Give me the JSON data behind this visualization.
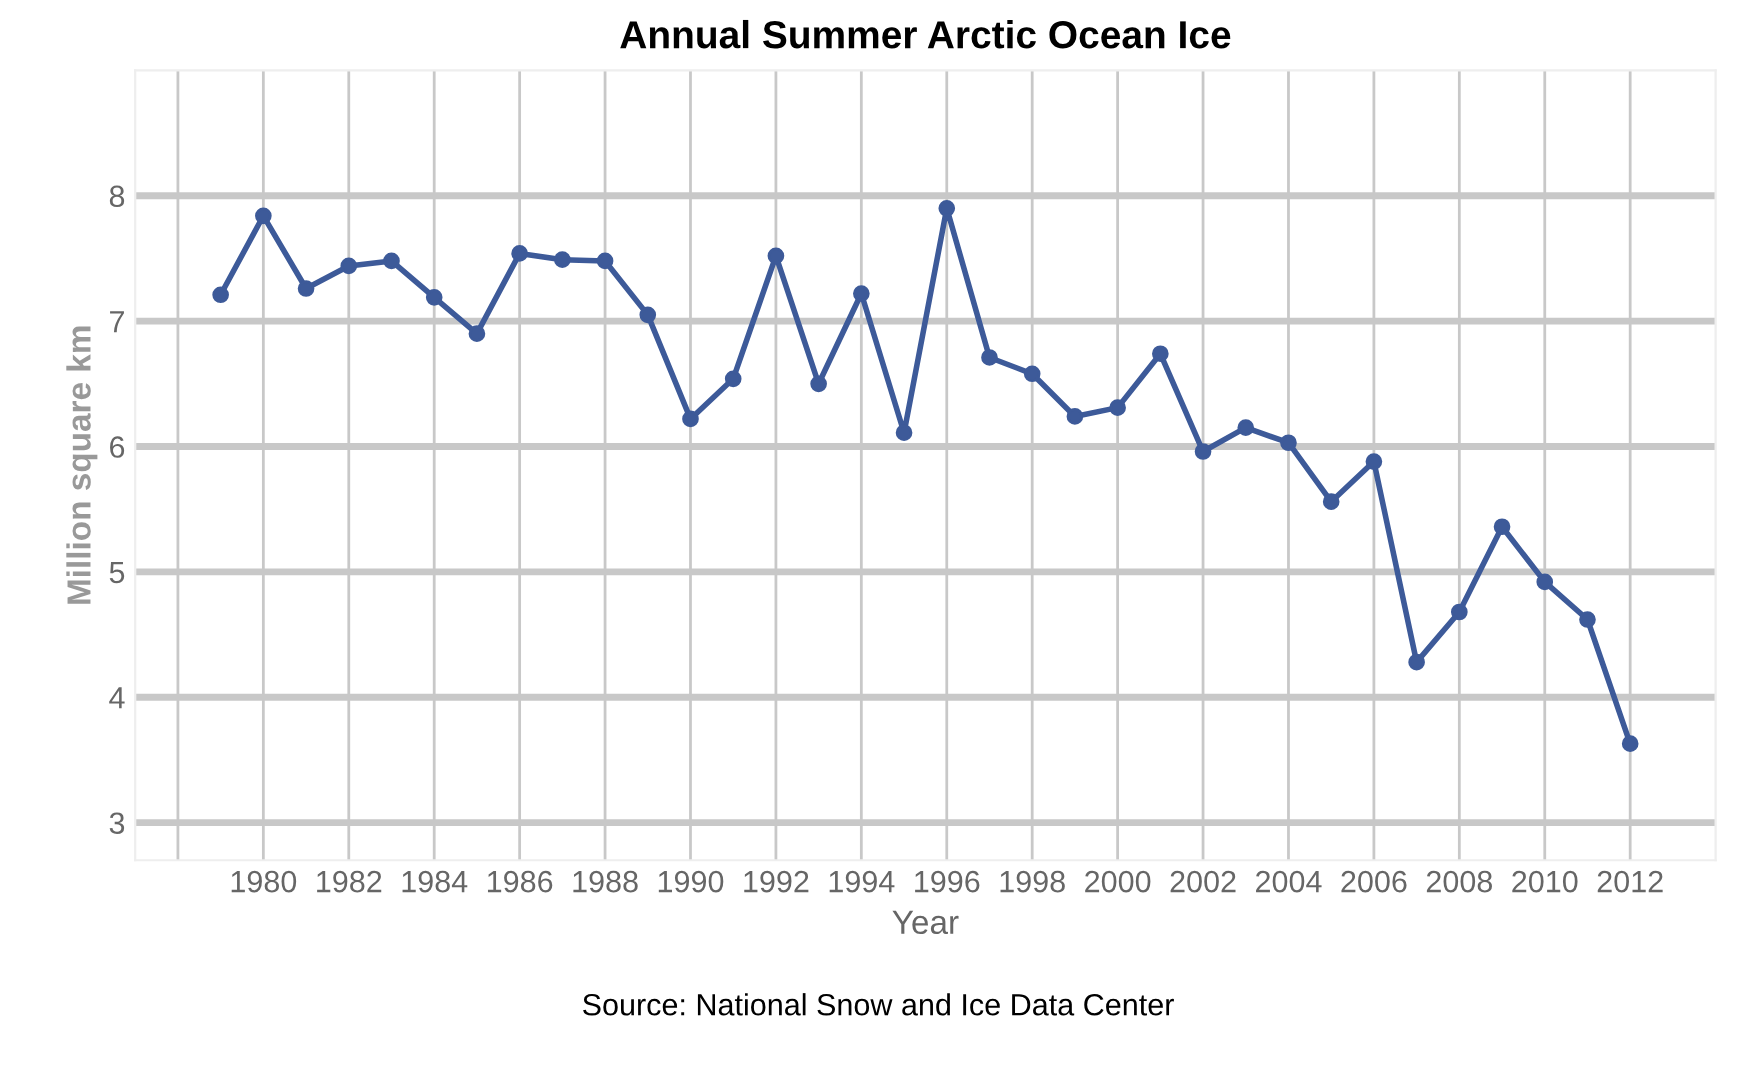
{
  "chart_data": {
    "type": "line",
    "title": "Annual Summer Arctic Ocean Ice",
    "xlabel": "Year",
    "ylabel": "Million square km",
    "annotations": [
      "Source: National Snow and Ice Data Center"
    ],
    "x": [
      1979,
      1980,
      1981,
      1982,
      1983,
      1984,
      1985,
      1986,
      1987,
      1988,
      1989,
      1990,
      1991,
      1992,
      1993,
      1994,
      1995,
      1996,
      1997,
      1998,
      1999,
      2000,
      2001,
      2002,
      2003,
      2004,
      2005,
      2006,
      2007,
      2008,
      2009,
      2010,
      2011,
      2012
    ],
    "series": [
      {
        "color": "#3d5a99",
        "values": [
          7.21,
          7.84,
          7.26,
          7.44,
          7.48,
          7.19,
          6.9,
          7.54,
          7.49,
          7.48,
          7.05,
          6.22,
          6.54,
          7.52,
          6.5,
          7.22,
          6.11,
          7.9,
          6.71,
          6.58,
          6.24,
          6.31,
          6.74,
          5.96,
          6.15,
          6.03,
          5.56,
          5.88,
          4.28,
          4.68,
          5.36,
          4.92,
          4.62,
          3.63
        ]
      }
    ],
    "xlim": [
      1977,
      2014
    ],
    "ylim": [
      2.7,
      9
    ],
    "xticks": [
      {
        "value": 1978,
        "label": null
      },
      1980,
      1982,
      1984,
      1986,
      1988,
      1990,
      1992,
      1994,
      1996,
      1998,
      2000,
      2002,
      2004,
      2006,
      2008,
      2010,
      2012
    ],
    "yticks": [
      3,
      4,
      5,
      6,
      7,
      8
    ],
    "grid": true,
    "marker": "circle",
    "line_style": "solid",
    "legend": false
  }
}
